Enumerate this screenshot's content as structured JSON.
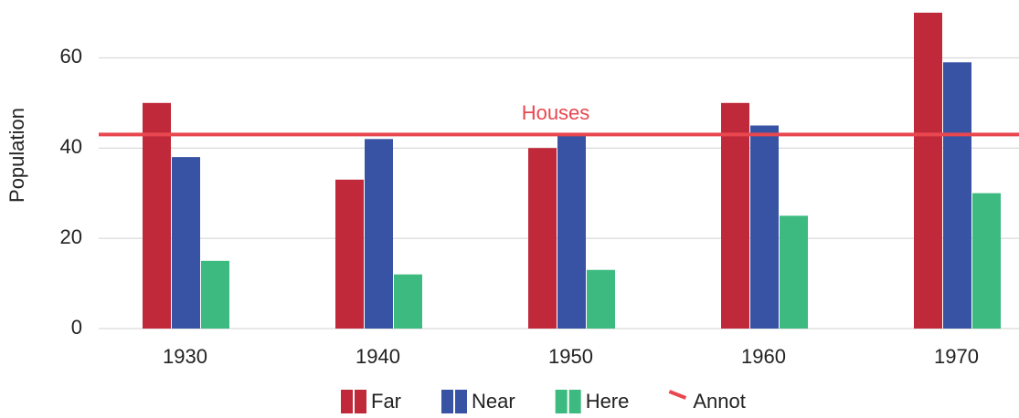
{
  "chart_data": {
    "type": "bar",
    "y_label": "Population",
    "categories": [
      "1930",
      "1940",
      "1950",
      "1960",
      "1970"
    ],
    "series": [
      {
        "name": "Far",
        "color": "#c0293a",
        "values": [
          50,
          33,
          40,
          50,
          70
        ]
      },
      {
        "name": "Near",
        "color": "#3853a4",
        "values": [
          38,
          42,
          43,
          45,
          59
        ]
      },
      {
        "name": "Here",
        "color": "#3dba80",
        "values": [
          15,
          12,
          13,
          25,
          30
        ]
      }
    ],
    "ylim": [
      0,
      72
    ],
    "yticks": [
      0,
      20,
      40,
      60
    ],
    "grid": true,
    "reference_line": {
      "label": "Houses",
      "value": 43,
      "color": "#e8474f",
      "legend_label": "Annot"
    },
    "legend": "bottom"
  }
}
